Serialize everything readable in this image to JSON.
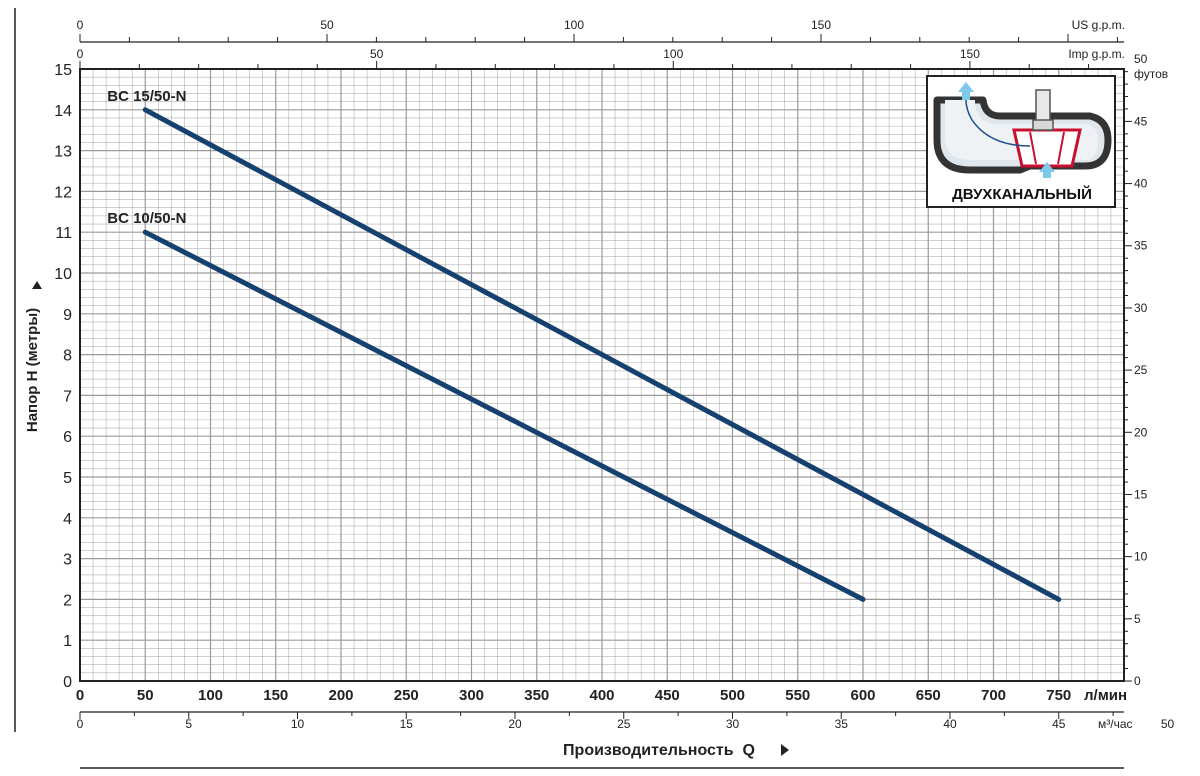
{
  "chart_data": {
    "type": "line",
    "xlabel": "Производительность  Q",
    "ylabel": "Напор  H (метры)",
    "x_unit": "л/мин",
    "xlim": [
      0,
      800
    ],
    "ylim": [
      0,
      15
    ],
    "x_ticks": [
      0,
      50,
      100,
      150,
      200,
      250,
      300,
      350,
      400,
      450,
      500,
      550,
      600,
      650,
      700,
      750
    ],
    "y_ticks": [
      0,
      1,
      2,
      3,
      4,
      5,
      6,
      7,
      8,
      9,
      10,
      11,
      12,
      13,
      14,
      15
    ],
    "grid": true,
    "series": [
      {
        "name": "BC 15/50-N",
        "x": [
          50,
          750
        ],
        "y": [
          14,
          2
        ]
      },
      {
        "name": "BC 10/50-N",
        "x": [
          50,
          600
        ],
        "y": [
          11,
          2
        ]
      }
    ],
    "right_axis": {
      "label": "футов",
      "ticks": [
        0,
        5,
        10,
        15,
        20,
        25,
        30,
        35,
        40,
        45,
        50
      ]
    },
    "top_axes": [
      {
        "label": "US g.p.m.",
        "ticks": [
          0,
          50,
          100,
          150
        ]
      },
      {
        "label": "Imp g.p.m.",
        "ticks": [
          0,
          50,
          100,
          150
        ]
      }
    ],
    "bottom_axis2": {
      "label": "м³/час",
      "ticks": [
        0,
        5,
        10,
        15,
        20,
        25,
        30,
        35,
        40,
        45,
        50
      ]
    },
    "colors": {
      "line": "#16406e",
      "grid": "#9a9a9a",
      "impeller": "#c8102e",
      "arrow": "#7ec8ec"
    },
    "inset": {
      "label": "ДВУХКАНАЛЬНЫЙ"
    }
  }
}
